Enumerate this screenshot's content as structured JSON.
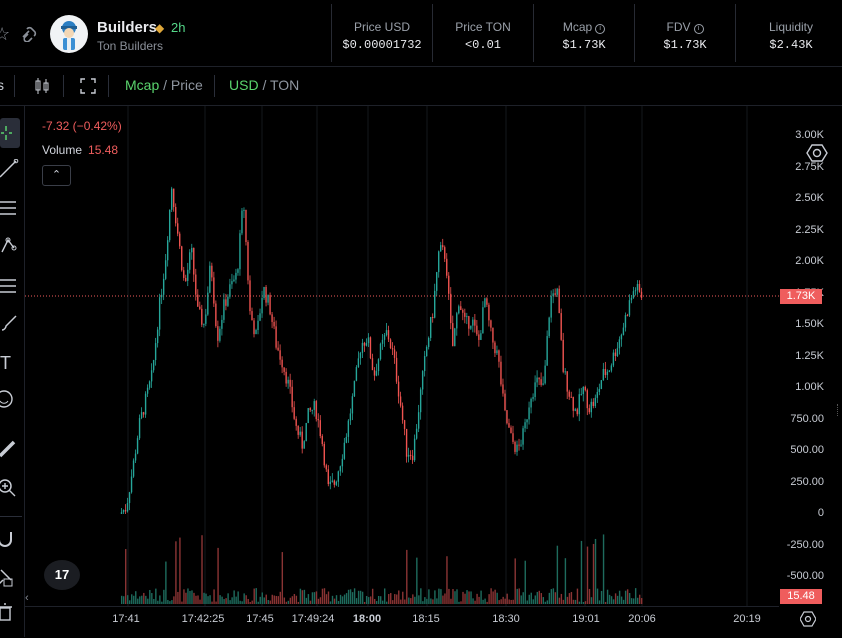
{
  "token": {
    "name": "Builders",
    "age": "2h",
    "subtitle": "Ton Builders"
  },
  "stats": [
    {
      "label": "Price USD",
      "value": "$0.00001732",
      "info": false
    },
    {
      "label": "Price TON",
      "value": "<0.01",
      "info": false
    },
    {
      "label": "Mcap",
      "value": "$1.73K",
      "info": true
    },
    {
      "label": "FDV",
      "value": "$1.73K",
      "info": true
    },
    {
      "label": "Liquidity",
      "value": "$2.43K",
      "info": false
    }
  ],
  "toolbar": {
    "left_cut_text": "s",
    "mode_active": "Mcap",
    "mode_sep": " / ",
    "mode_inactive": "Price",
    "currency_active": "USD",
    "currency_sep": " / ",
    "currency_inactive": "TON"
  },
  "legend": {
    "change": "-7.32 (−0.42%)",
    "volume_label": "Volume",
    "volume_value": "15.48"
  },
  "price_tag": "1.73K",
  "volume_tag": "15.48",
  "logo_text": "17",
  "colors": {
    "up": "#26a69a",
    "down": "#ef5350",
    "accent": "#5ad46d",
    "tag": "#ef5d5d"
  },
  "icons": [
    "star-icon",
    "link-icon",
    "candles-icon",
    "fullscreen-icon",
    "crosshair-icon",
    "trendline-icon",
    "fib-icon",
    "pattern-icon",
    "measure-icon",
    "brush-icon",
    "text-icon",
    "emoji-icon",
    "ruler-icon",
    "zoom-icon",
    "magnet-icon",
    "lock-icon",
    "settings-icon"
  ],
  "chart_data": {
    "type": "candlestick",
    "y_ticks": [
      "3.00K",
      "2.75K",
      "2.50K",
      "2.25K",
      "2.00K",
      "1.75K",
      "1.50K",
      "1.25K",
      "1.00K",
      "750.00",
      "500.00",
      "250.00",
      "0",
      "-250.00",
      "-500.00"
    ],
    "y_tick_values": [
      3000,
      2750,
      2500,
      2250,
      2000,
      1750,
      1500,
      1250,
      1000,
      750,
      500,
      250,
      0,
      -250,
      -500
    ],
    "x_ticks": [
      "17:41",
      "17:42:25",
      "17:45",
      "17:49:24",
      "18:00",
      "18:15",
      "18:30",
      "19:01",
      "20:06",
      "20:19"
    ],
    "ylim": [
      -600,
      3100
    ],
    "last_value": 1730,
    "price_path": [
      0,
      50,
      350,
      700,
      900,
      1100,
      1600,
      2000,
      2600,
      2200,
      1800,
      2100,
      1600,
      1500,
      2000,
      1400,
      1650,
      1800,
      1900,
      2500,
      1600,
      1400,
      1800,
      1650,
      1350,
      1200,
      1000,
      700,
      550,
      800,
      850,
      600,
      200,
      250,
      450,
      700,
      1000,
      1350,
      1400,
      1100,
      1300,
      1450,
      1250,
      900,
      500,
      480,
      900,
      1300,
      1600,
      2100,
      2050,
      1300,
      1700,
      1500,
      1550,
      1350,
      1700,
      1400,
      1250,
      800,
      600,
      500,
      650,
      950,
      1050,
      1000,
      1700,
      1800,
      1150,
      950,
      800,
      1000,
      850,
      900,
      1100,
      1150,
      1300,
      1450,
      1650,
      1800,
      1730
    ]
  }
}
